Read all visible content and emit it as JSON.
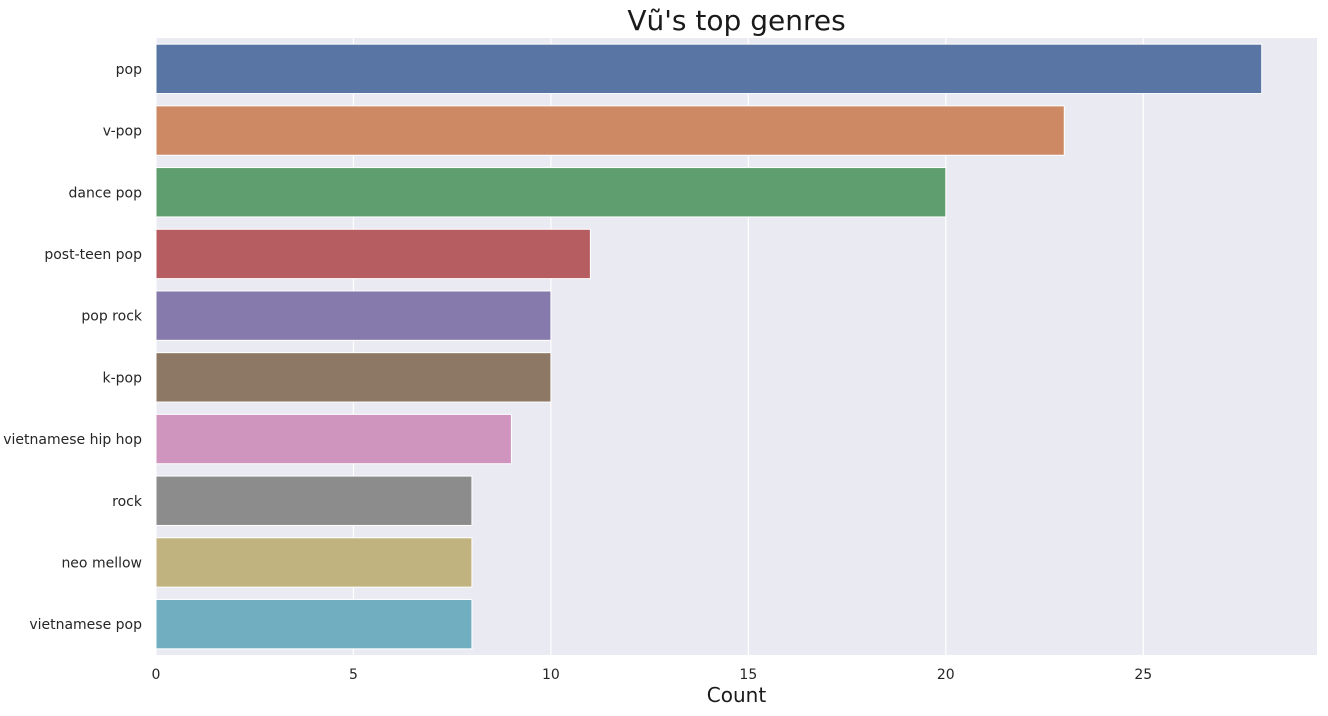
{
  "chart_data": {
    "type": "bar",
    "orientation": "horizontal",
    "title": "Vũ's top genres",
    "xlabel": "Count",
    "ylabel": "",
    "categories": [
      "pop",
      "v-pop",
      "dance pop",
      "post-teen pop",
      "pop rock",
      "k-pop",
      "vietnamese hip hop",
      "rock",
      "neo mellow",
      "vietnamese pop"
    ],
    "values": [
      28,
      23,
      20,
      11,
      10,
      10,
      9,
      8,
      8,
      8
    ],
    "colors": [
      "#5875a4",
      "#cc8963",
      "#5f9e6e",
      "#b55d60",
      "#857aab",
      "#8d7866",
      "#d095bf",
      "#8c8c8c",
      "#c1b37f",
      "#71aec0"
    ],
    "xlim": [
      0,
      29.4
    ],
    "xticks": [
      0,
      5,
      10,
      15,
      20,
      25
    ],
    "grid": true,
    "background": "#eaeaf2",
    "legend": "none"
  }
}
